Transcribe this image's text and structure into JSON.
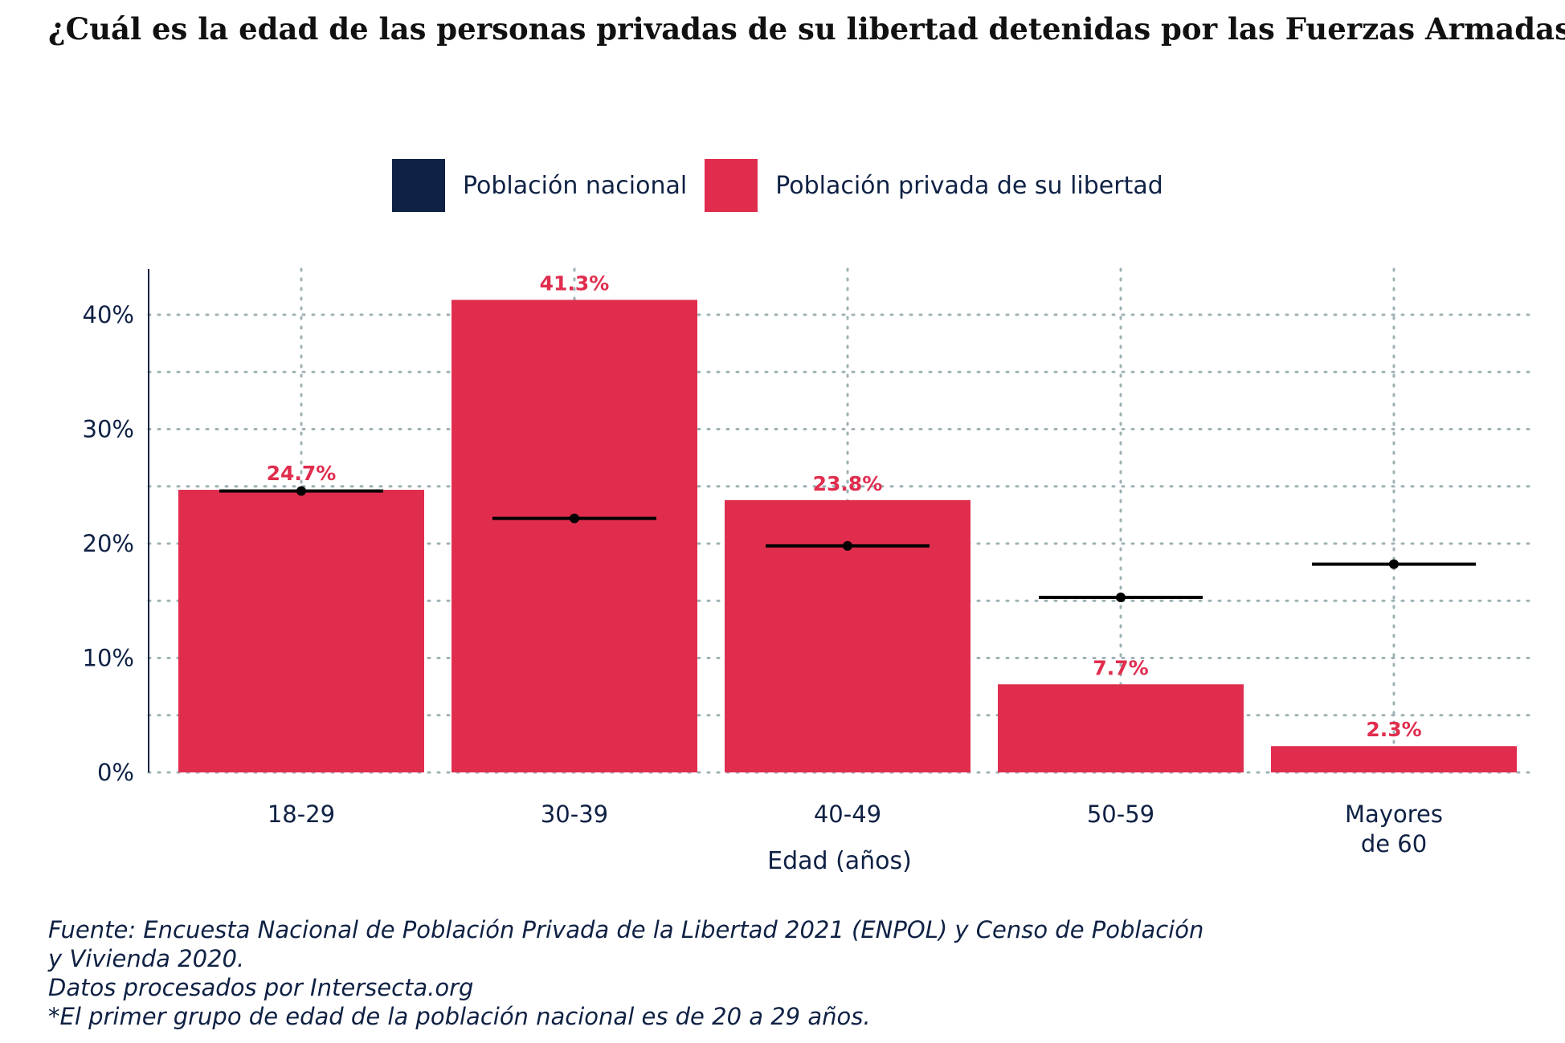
{
  "title": "¿Cuál es la edad de las personas privadas de su libertad detenidas por las Fuerzas Armadas?",
  "legend": [
    {
      "label": "Población nacional",
      "color": "#0f2144"
    },
    {
      "label": "Población privada de su libertad",
      "color": "#e02d4e"
    }
  ],
  "chart_data": {
    "type": "bar",
    "categories": [
      "18-29",
      "30-39",
      "40-49",
      "50-59",
      "Mayores de 60"
    ],
    "category_lines": [
      [
        "18-29"
      ],
      [
        "30-39"
      ],
      [
        "40-49"
      ],
      [
        "50-59"
      ],
      [
        "Mayores",
        "de 60"
      ]
    ],
    "series": [
      {
        "name": "Población privada de su libertad",
        "type": "bar",
        "values": [
          24.7,
          41.3,
          23.8,
          7.7,
          2.3
        ],
        "labels": [
          "24.7%",
          "41.3%",
          "23.8%",
          "7.7%",
          "2.3%"
        ],
        "color": "#e02d4e"
      },
      {
        "name": "Población nacional",
        "type": "point-range",
        "values": [
          24.6,
          22.2,
          19.8,
          15.3,
          18.2
        ],
        "color": "#000000"
      }
    ],
    "xlabel": "Edad (años)",
    "ylabel": "",
    "ylim": [
      0,
      44
    ],
    "yticks": [
      0,
      10,
      20,
      30,
      40
    ],
    "ytick_labels": [
      "0%",
      "10%",
      "20%",
      "30%",
      "40%"
    ],
    "grid": true,
    "legend_position": "top"
  },
  "footer": [
    "Fuente: Encuesta Nacional de Población Privada de la Libertad 2021 (ENPOL) y Censo de Población",
    "y Vivienda 2020.",
    "Datos procesados por Intersecta.org",
    "*El primer grupo de edad de la población nacional es de 20 a 29 años."
  ]
}
